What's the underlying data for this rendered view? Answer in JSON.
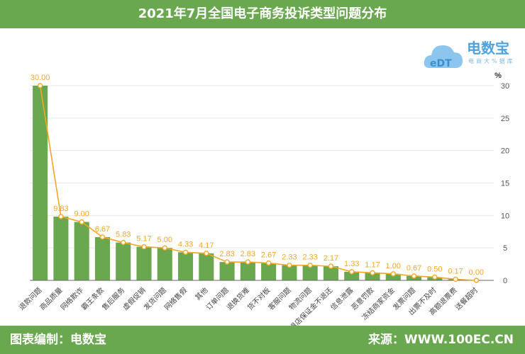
{
  "title": "2021年7月全国电子商务投诉类型问题分布",
  "footer": {
    "left": "图表编制：电数宝",
    "right": "来源：WWW.100EC.CN"
  },
  "logo": {
    "brand": "电数宝",
    "sub": "电商大%据库",
    "mark": "eDT"
  },
  "colors": {
    "bar": "#6aa84f",
    "line": "#f5a623",
    "header": "#6aa84f"
  },
  "chart_data": {
    "type": "bar",
    "title": "2021年7月全国电子商务投诉类型问题分布",
    "ylabel": "%",
    "ylim": [
      0,
      30
    ],
    "yticks": [
      0,
      5,
      10,
      15,
      20,
      25,
      30
    ],
    "y_axis_position": "right",
    "grid": true,
    "line_overlay": true,
    "categories": [
      "退款问题",
      "商品质量",
      "网络欺诈",
      "霸王条款",
      "售后服务",
      "虚假促销",
      "发货问题",
      "网络售假",
      "其他",
      "订单问题",
      "退换货难",
      "货不对板",
      "客服问题",
      "物流问题",
      "退店保证金不退还",
      "信息泄露",
      "恶意罚款",
      "冻结商家资金",
      "发票问题",
      "出票不及时",
      "高额退票费",
      "送餐超时"
    ],
    "values": [
      30.0,
      9.83,
      9.0,
      6.67,
      5.83,
      5.17,
      5.0,
      4.33,
      4.17,
      2.83,
      2.83,
      2.67,
      2.33,
      2.33,
      2.17,
      1.33,
      1.17,
      1.0,
      0.67,
      0.5,
      0.17,
      0.0
    ],
    "labels": [
      "30.00",
      "9.83",
      "9.00",
      "6.67",
      "5.83",
      "5.17",
      "5.00",
      "4.33",
      "4.17",
      "2.83",
      "2.83",
      "2.67",
      "2.33",
      "2.33",
      "2.17",
      "1.33",
      "1.17",
      "1.00",
      "0.67",
      "0.50",
      "0.17",
      "0.00"
    ]
  }
}
